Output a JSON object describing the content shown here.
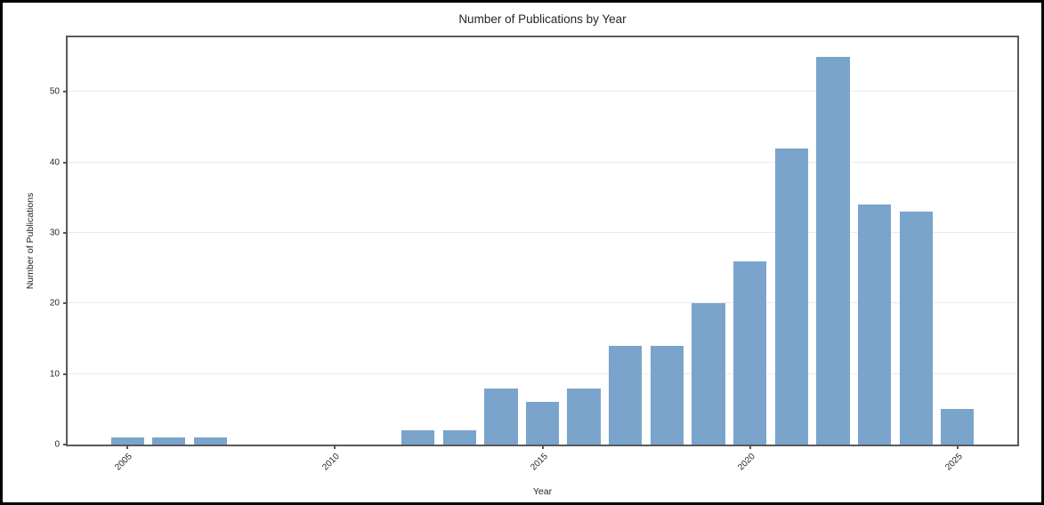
{
  "window": {
    "background": "#ffffff",
    "outer_border_color": "#000000"
  },
  "chart_data": {
    "type": "bar",
    "title": "Number of Publications by Year",
    "xlabel": "Year",
    "ylabel": "Number of Publications",
    "x": [
      2005,
      2006,
      2007,
      2012,
      2013,
      2014,
      2015,
      2016,
      2017,
      2018,
      2019,
      2020,
      2021,
      2022,
      2023,
      2024,
      2025
    ],
    "values": [
      1,
      1,
      1,
      2,
      2,
      8,
      6,
      8,
      14,
      14,
      20,
      26,
      42,
      55,
      34,
      33,
      5
    ],
    "bar_width_years": 0.8,
    "bar_color": "#7aa4cb",
    "xticks": [
      2005,
      2010,
      2015,
      2020,
      2025
    ],
    "xtick_rotation": 45,
    "yticks": [
      0,
      10,
      20,
      30,
      40,
      50
    ],
    "xlim": [
      2003.56,
      2026.44
    ],
    "ylim": [
      0,
      57.75
    ],
    "grid": "horizontal",
    "grid_color": "#ebebeb",
    "spine_color": "#58595b",
    "tick_color": "#555555",
    "text_color": "#262626",
    "legend": "none"
  }
}
